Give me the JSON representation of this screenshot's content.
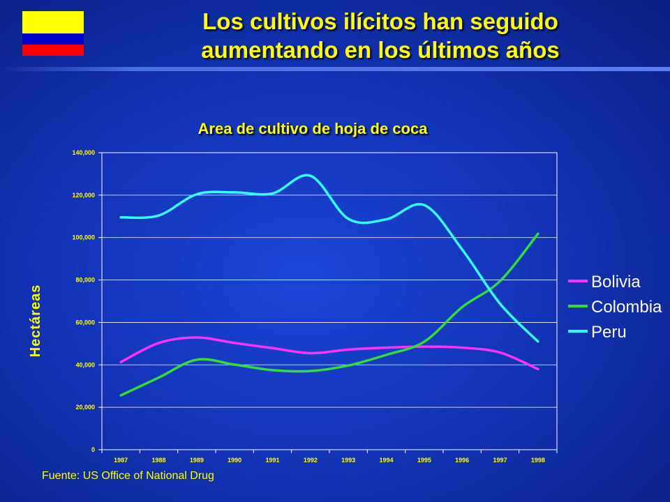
{
  "slide": {
    "title_line1": "Los cultivos ilícitos han seguido",
    "title_line2": "aumentando en los últimos años",
    "source": "Fuente: US Office of National Drug",
    "flag_colors": [
      "#ffff00",
      "#0000cc",
      "#ff0000"
    ]
  },
  "chart_data": {
    "type": "line",
    "title": "Area de cultivo de hoja de coca",
    "ylabel": "Hectáreas",
    "xlabel": "",
    "x": [
      "1987",
      "1988",
      "1989",
      "1990",
      "1991",
      "1992",
      "1993",
      "1994",
      "1995",
      "1996",
      "1997",
      "1998"
    ],
    "ylim": [
      0,
      140000
    ],
    "yticks": [
      0,
      20000,
      40000,
      60000,
      80000,
      100000,
      120000,
      140000
    ],
    "ytick_labels": [
      "0",
      "20,000",
      "40,000",
      "60,000",
      "80,000",
      "100,000",
      "120,000",
      "140,000"
    ],
    "grid": true,
    "legend_position": "right",
    "series": [
      {
        "name": "Bolivia",
        "color": "#ff33ff",
        "values": [
          41300,
          50300,
          52900,
          50300,
          47900,
          45500,
          47200,
          48100,
          48600,
          48100,
          45800,
          38000
        ]
      },
      {
        "name": "Colombia",
        "color": "#33dd33",
        "values": [
          25600,
          34000,
          42400,
          40100,
          37500,
          37100,
          39700,
          44700,
          50900,
          67200,
          79500,
          101800
        ]
      },
      {
        "name": "Peru",
        "color": "#33ffff",
        "values": [
          109500,
          110400,
          120400,
          121300,
          120800,
          129100,
          108800,
          108600,
          115300,
          94400,
          68800,
          51000
        ]
      }
    ]
  }
}
